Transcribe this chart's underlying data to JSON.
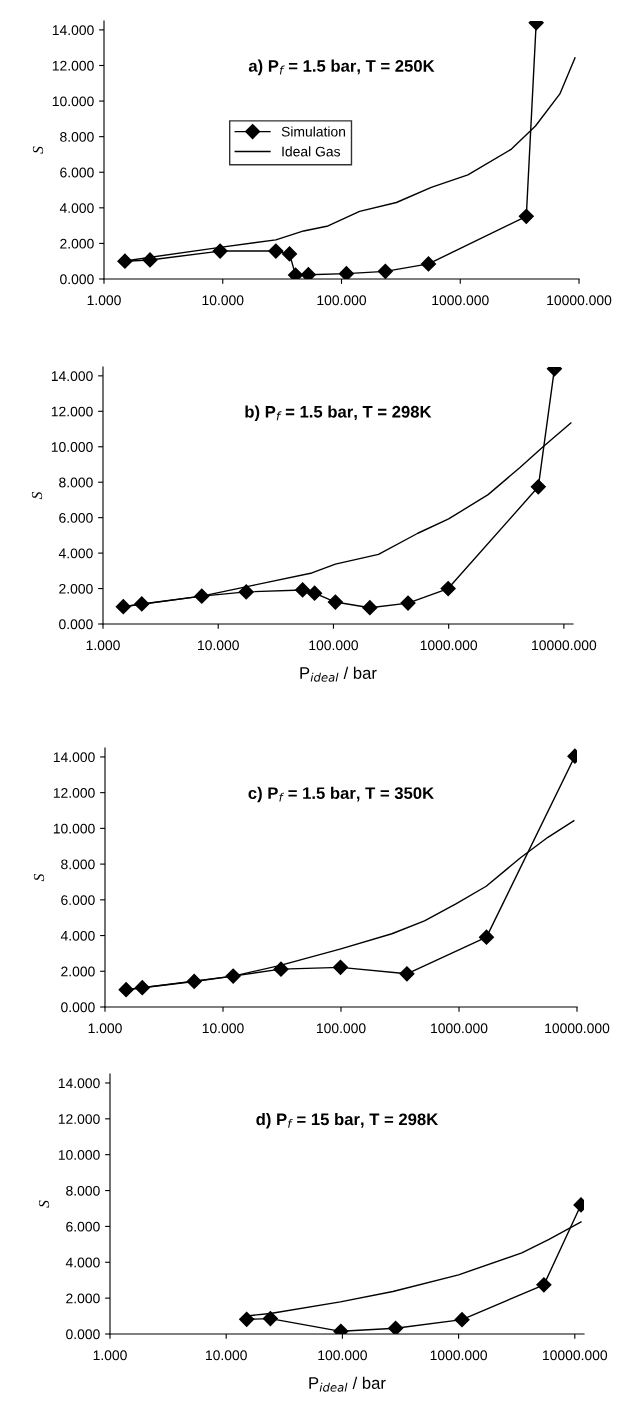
{
  "chart_data": [
    {
      "type": "line",
      "title": "a) P$_{f}$ = 1.5 bar, T = 250K",
      "ylabel": "S",
      "log": "x",
      "legend": "top left",
      "grid": false,
      "xlim": [
        1,
        10000
      ],
      "ylim": [
        0,
        14.5
      ],
      "xticks": [
        {
          "value": 1,
          "label": "1.000"
        },
        {
          "value": 10,
          "label": "10.000"
        },
        {
          "value": 100,
          "label": "100.000"
        },
        {
          "value": 1000,
          "label": "1000.000"
        },
        {
          "value": 10000,
          "label": "10000.000"
        }
      ],
      "yticks": [
        {
          "value": 0,
          "label": "0.000"
        },
        {
          "value": 2,
          "label": "2.000"
        },
        {
          "value": 4,
          "label": "4.000"
        },
        {
          "value": 6,
          "label": "6.000"
        },
        {
          "value": 8,
          "label": "8.000"
        },
        {
          "value": 10,
          "label": "10.000"
        },
        {
          "value": 12,
          "label": "12.000"
        },
        {
          "value": 14,
          "label": "14.000"
        }
      ],
      "series": [
        {
          "name": "Simulation",
          "color": "#000000",
          "marker": "diamond",
          "x": [
            1.5,
            2.44,
            9.5,
            28,
            36.5,
            41,
            52.6,
            110,
            234,
            540,
            3600,
            4360
          ],
          "values": [
            1.0,
            1.07,
            1.57,
            1.57,
            1.41,
            0.22,
            0.24,
            0.3,
            0.43,
            0.85,
            3.52,
            14.4
          ]
        },
        {
          "name": "Ideal Gas",
          "color": "#000000",
          "marker": "none",
          "x": [
            1.5,
            9.5,
            28,
            48,
            77,
            142,
            290,
            570,
            1160,
            2700,
            4300,
            6900,
            9250
          ],
          "values": [
            1.02,
            1.78,
            2.2,
            2.7,
            2.98,
            3.8,
            4.3,
            5.15,
            5.85,
            7.3,
            8.6,
            10.4,
            12.43
          ]
        }
      ]
    },
    {
      "type": "line",
      "title": "b) P$_{f}$ = 1.5 bar, T = 298K",
      "ylabel": "S",
      "xlabel": "P$_{ideal}$ / bar",
      "log": "x",
      "grid": false,
      "xlim": [
        1,
        12000
      ],
      "ylim": [
        0,
        14.5
      ],
      "xticks": [
        {
          "value": 1,
          "label": "1.000"
        },
        {
          "value": 10,
          "label": "10.000"
        },
        {
          "value": 100,
          "label": "100.000"
        },
        {
          "value": 1000,
          "label": "1000.000"
        },
        {
          "value": 10000,
          "label": "10000.000"
        }
      ],
      "yticks": [
        {
          "value": 0,
          "label": "0.000"
        },
        {
          "value": 2,
          "label": "2.000"
        },
        {
          "value": 4,
          "label": "4.000"
        },
        {
          "value": 6,
          "label": "6.000"
        },
        {
          "value": 8,
          "label": "8.000"
        },
        {
          "value": 10,
          "label": "10.000"
        },
        {
          "value": 12,
          "label": "12.000"
        },
        {
          "value": 14,
          "label": "14.000"
        }
      ],
      "series": [
        {
          "color": "#000000",
          "marker": "diamond",
          "x": [
            1.5,
            2.17,
            7.2,
            17.5,
            54,
            68.6,
            104,
            207,
            444,
            990,
            6000,
            8280
          ],
          "values": [
            0.98,
            1.13,
            1.57,
            1.81,
            1.92,
            1.74,
            1.24,
            0.92,
            1.18,
            2.0,
            7.74,
            14.4
          ]
        },
        {
          "color": "#000000",
          "marker": "none",
          "x": [
            1.5,
            7.2,
            20,
            65,
            104,
            246,
            540,
            1000,
            2200,
            4160,
            6600,
            11500
          ],
          "values": [
            0.98,
            1.57,
            2.18,
            2.88,
            3.38,
            3.93,
            5.12,
            5.93,
            7.3,
            8.83,
            10.0,
            11.34
          ]
        }
      ]
    },
    {
      "type": "line",
      "title": "c) P$_{f}$ = 1.5 bar, T = 350K",
      "ylabel": "S",
      "log": "x",
      "grid": false,
      "xlim": [
        1,
        10000
      ],
      "ylim": [
        0,
        14.5
      ],
      "xticks": [
        {
          "value": 1,
          "label": "1.000"
        },
        {
          "value": 10,
          "label": "10.000"
        },
        {
          "value": 100,
          "label": "100.000"
        },
        {
          "value": 1000,
          "label": "1000.000"
        },
        {
          "value": 10000,
          "label": "10000.000"
        }
      ],
      "yticks": [
        {
          "value": 0,
          "label": "0.000"
        },
        {
          "value": 2,
          "label": "2.000"
        },
        {
          "value": 4,
          "label": "4.000"
        },
        {
          "value": 6,
          "label": "6.000"
        },
        {
          "value": 8,
          "label": "8.000"
        },
        {
          "value": 10,
          "label": "10.000"
        },
        {
          "value": 12,
          "label": "12.000"
        },
        {
          "value": 14,
          "label": "14.000"
        }
      ],
      "series": [
        {
          "color": "#000000",
          "marker": "diamond",
          "x": [
            1.51,
            2.07,
            5.7,
            12.2,
            31,
            99,
            362,
            1710,
            9600
          ],
          "values": [
            0.97,
            1.08,
            1.43,
            1.73,
            2.12,
            2.22,
            1.86,
            3.91,
            14.04
          ]
        },
        {
          "color": "#000000",
          "marker": "none",
          "x": [
            1.51,
            12.2,
            30.6,
            98,
            270,
            510,
            950,
            1700,
            3300,
            5670,
            9400
          ],
          "values": [
            0.97,
            1.73,
            2.33,
            3.24,
            4.1,
            4.82,
            5.79,
            6.76,
            8.34,
            9.5,
            10.43
          ]
        }
      ]
    },
    {
      "type": "line",
      "title": "d) P$_{f}$ = 15 bar, T = 298K",
      "ylabel": "S",
      "xlabel": "P$_{ideal}$ / bar",
      "log": "x",
      "grid": false,
      "xlim": [
        1,
        12000
      ],
      "ylim": [
        0,
        14.5
      ],
      "xticks": [
        {
          "value": 1,
          "label": "1.000"
        },
        {
          "value": 10,
          "label": "10.000"
        },
        {
          "value": 100,
          "label": "100.000"
        },
        {
          "value": 1000,
          "label": "1000.000"
        },
        {
          "value": 10000,
          "label": "10000.000"
        }
      ],
      "yticks": [
        {
          "value": 0,
          "label": "0.000"
        },
        {
          "value": 2,
          "label": "2.000"
        },
        {
          "value": 4,
          "label": "4.000"
        },
        {
          "value": 6,
          "label": "6.000"
        },
        {
          "value": 8,
          "label": "8.000"
        },
        {
          "value": 10,
          "label": "10.000"
        },
        {
          "value": 12,
          "label": "12.000"
        },
        {
          "value": 14,
          "label": "14.000"
        }
      ],
      "series": [
        {
          "color": "#000000",
          "marker": "diamond",
          "x": [
            15,
            24,
            97,
            287,
            1070,
            5420,
            11300
          ],
          "values": [
            0.82,
            0.86,
            0.15,
            0.32,
            0.8,
            2.74,
            7.2
          ]
        },
        {
          "color": "#000000",
          "marker": "none",
          "x": [
            15,
            24,
            96,
            272,
            1000,
            3500,
            6000,
            11300
          ],
          "values": [
            1.01,
            1.14,
            1.79,
            2.37,
            3.3,
            4.52,
            5.28,
            6.25
          ]
        }
      ]
    }
  ]
}
